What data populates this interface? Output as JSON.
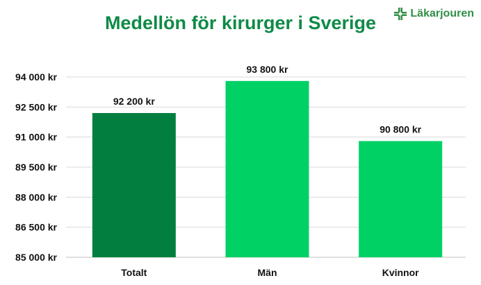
{
  "logo": {
    "text": "Läkarjouren",
    "icon": "medical-cross-icon",
    "color": "#2f8f45"
  },
  "chart_data": {
    "type": "bar",
    "title": "Medellön för kirurger i Sverige",
    "categories": [
      "Totalt",
      "Män",
      "Kvinnor"
    ],
    "values": [
      92200,
      93800,
      90800
    ],
    "data_labels": [
      "92 200 kr",
      "93 800 kr",
      "90 800 kr"
    ],
    "colors": [
      "#027f3f",
      "#00d165",
      "#00d165"
    ],
    "ylim": [
      85000,
      94000
    ],
    "yticks": [
      85000,
      86500,
      88000,
      89500,
      91000,
      92500,
      94000
    ],
    "ytick_labels": [
      "85 000 kr",
      "86 500 kr",
      "88 000 kr",
      "89 500 kr",
      "91 000 kr",
      "92 500 kr",
      "94 000 kr"
    ],
    "xlabel": "",
    "ylabel": "",
    "grid": true
  }
}
